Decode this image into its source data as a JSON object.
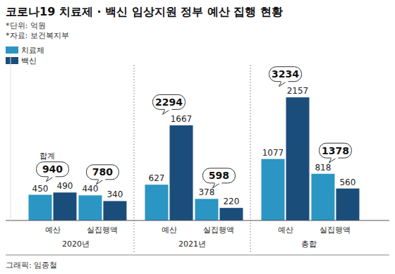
{
  "chart_data": {
    "type": "bar",
    "title": "코로나19 치료제 · 백신 임상지원 정부 예산 집행 현황",
    "notes": [
      "*단위: 억원",
      "*자료: 보건복지부"
    ],
    "categories": [
      "예산",
      "실집행액",
      "예산",
      "실집행액",
      "예산",
      "실집행액"
    ],
    "group_labels": [
      "2020년",
      "2021년",
      "총합"
    ],
    "series": [
      {
        "name": "치료제",
        "color": "#2b95c3",
        "values": [
          450,
          440,
          627,
          378,
          1077,
          818
        ]
      },
      {
        "name": "백신",
        "color": "#1b4d7a",
        "values": [
          490,
          340,
          1667,
          220,
          2157,
          560
        ]
      }
    ],
    "totals": {
      "label": "합계",
      "values": [
        940,
        780,
        2294,
        598,
        3234,
        1378
      ]
    },
    "credit": "그래픽: 임종철",
    "ylim": [
      0,
      2900
    ],
    "data_labels": true,
    "tick_labels": "x",
    "legend": "upper left"
  }
}
